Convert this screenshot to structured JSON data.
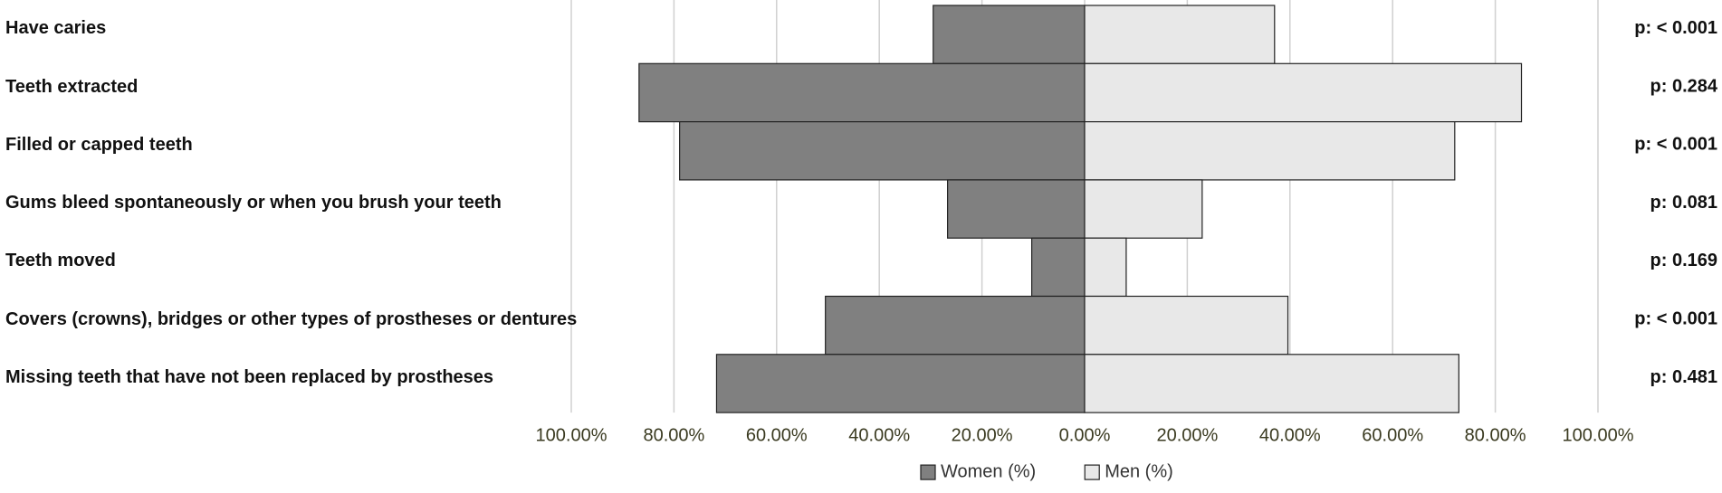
{
  "chart_data": {
    "type": "butterfly-bar",
    "categories": [
      "Have caries",
      "Teeth extracted",
      "Filled or capped teeth",
      "Gums bleed spontaneously or when you brush your teeth",
      "Teeth moved",
      "Covers (crowns), bridges or other types of prostheses or dentures",
      "Missing teeth that have not been replaced by prostheses"
    ],
    "series": [
      {
        "name": "Women (%)",
        "color": "#808080",
        "side": "left",
        "values": [
          29.5,
          86.8,
          78.9,
          26.7,
          10.3,
          50.5,
          71.7
        ]
      },
      {
        "name": "Men (%)",
        "color": "#e8e8e8",
        "side": "right",
        "values": [
          37.0,
          85.1,
          72.1,
          22.9,
          8.1,
          39.6,
          72.9
        ]
      }
    ],
    "p_values": [
      "p: < 0.001",
      "p: 0.284",
      "p: < 0.001",
      "p: 0.081",
      "p: 0.169",
      "p: < 0.001",
      "p: 0.481"
    ],
    "xlim": [
      -100,
      100
    ],
    "xticks": [
      {
        "value": -100,
        "label": "100.00%"
      },
      {
        "value": -80,
        "label": "80.00%"
      },
      {
        "value": -60,
        "label": "60.00%"
      },
      {
        "value": -40,
        "label": "40.00%"
      },
      {
        "value": -20,
        "label": "20.00%"
      },
      {
        "value": 0,
        "label": "0.00%"
      },
      {
        "value": 20,
        "label": "20.00%"
      },
      {
        "value": 40,
        "label": "40.00%"
      },
      {
        "value": 60,
        "label": "60.00%"
      },
      {
        "value": 80,
        "label": "80.00%"
      },
      {
        "value": 100,
        "label": "100.00%"
      }
    ],
    "grid": true,
    "legend": "bottom"
  }
}
